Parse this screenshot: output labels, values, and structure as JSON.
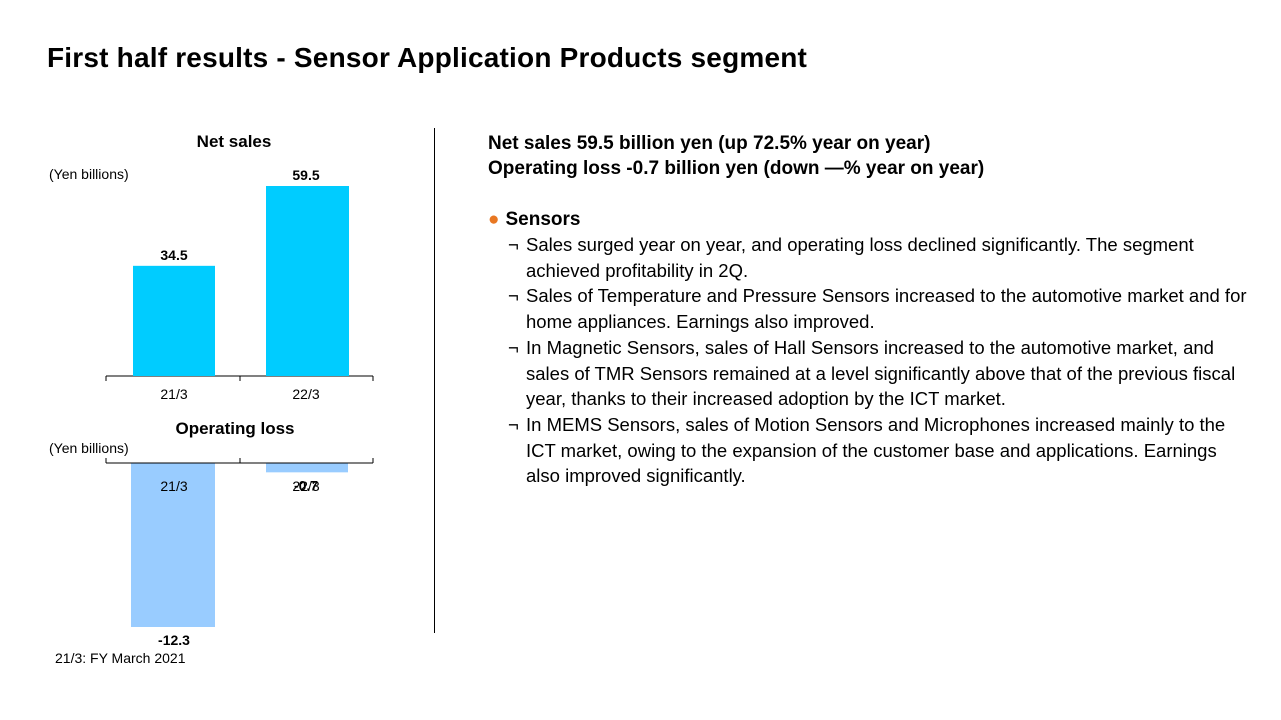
{
  "page": {
    "title": "First half results - Sensor Application Products segment",
    "footnote": "21/3: FY March 2021"
  },
  "summary": {
    "line1": "Net sales  59.5 billion yen (up 72.5% year on year)",
    "line2": "Operating loss  -0.7 billion yen (down —% year on year)"
  },
  "section": {
    "heading": "Sensors",
    "bullet_mark": "¬",
    "bullets": [
      "Sales surged year on year, and operating loss declined significantly. The segment achieved profitability in 2Q.",
      "Sales of Temperature and Pressure Sensors increased to the automotive market and for home appliances. Earnings also improved.",
      "In Magnetic Sensors, sales of Hall Sensors increased to the automotive market, and sales of TMR Sensors remained at a level significantly above that of the previous fiscal year, thanks to their increased adoption by the ICT market.",
      "In MEMS Sensors, sales of Motion Sensors and Microphones increased mainly to the ICT market, owing to the expansion of the customer base and applications. Earnings also improved significantly."
    ]
  },
  "colors": {
    "net_sales_bar": "#00CCFF",
    "operating_bar": "#99CCFF",
    "bullet_dot": "#E87722"
  },
  "chart_data": [
    {
      "type": "bar",
      "title": "Net sales",
      "unit": "(Yen billions)",
      "categories": [
        "21/3",
        "22/3"
      ],
      "values": [
        34.5,
        59.5
      ],
      "labels": [
        "34.5",
        "59.5"
      ]
    },
    {
      "type": "bar",
      "title": "Operating loss",
      "unit": "(Yen billions)",
      "categories": [
        "21/3",
        "22/3"
      ],
      "values": [
        -12.3,
        -0.7
      ],
      "labels": [
        "-12.3",
        "-0.7"
      ]
    }
  ]
}
